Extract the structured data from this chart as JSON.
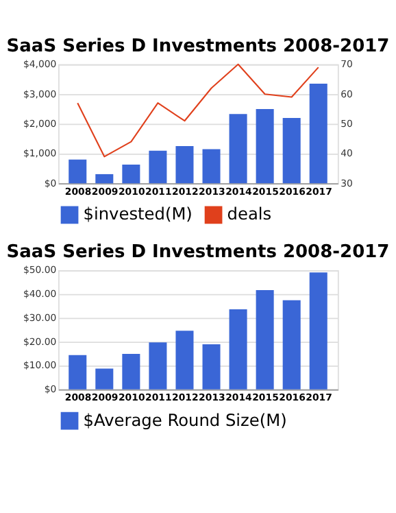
{
  "chart_data": [
    {
      "type": "bar",
      "title": "SaaS Series D Investments 2008-2017",
      "categories": [
        "2008",
        "2009",
        "2010",
        "2011",
        "2012",
        "2013",
        "2014",
        "2015",
        "2016",
        "2017"
      ],
      "series": [
        {
          "name": "$invested(M)",
          "color": "#3a66d6",
          "values": [
            800,
            310,
            630,
            1100,
            1250,
            1150,
            2330,
            2500,
            2200,
            3350
          ]
        },
        {
          "name": "deals",
          "type": "line",
          "axis": "y2",
          "color": "#e0401c",
          "values": [
            57,
            39,
            44,
            57,
            51,
            62,
            70,
            60,
            59,
            69
          ]
        }
      ],
      "ylim": [
        0,
        4000
      ],
      "yticks": [
        {
          "value": 0,
          "label": "$0"
        },
        {
          "value": 1000,
          "label": "$1,000"
        },
        {
          "value": 2000,
          "label": "$2,000"
        },
        {
          "value": 3000,
          "label": "$3,000"
        },
        {
          "value": 4000,
          "label": "$4,000"
        }
      ],
      "y2lim": [
        30,
        70
      ],
      "y2ticks": [
        30,
        40,
        50,
        60,
        70
      ],
      "grid": "y",
      "legend": "bottom",
      "marker": "none"
    },
    {
      "type": "bar",
      "title": "SaaS Series D Investments 2008-2017",
      "categories": [
        "2008",
        "2009",
        "2010",
        "2011",
        "2012",
        "2013",
        "2014",
        "2015",
        "2016",
        "2017"
      ],
      "series": [
        {
          "name": "$Average Round Size(M)",
          "color": "#3a66d6",
          "values": [
            14.4,
            8.7,
            14.9,
            19.7,
            24.6,
            18.9,
            33.6,
            41.7,
            37.4,
            49.1
          ]
        }
      ],
      "ylim": [
        0,
        50
      ],
      "yticks": [
        {
          "value": 0,
          "label": "$0"
        },
        {
          "value": 10,
          "label": "$10.00"
        },
        {
          "value": 20,
          "label": "$20.00"
        },
        {
          "value": 30,
          "label": "$30.00"
        },
        {
          "value": 40,
          "label": "$40.00"
        },
        {
          "value": 50,
          "label": "$50.00"
        }
      ],
      "grid": "y",
      "legend": "bottom"
    }
  ]
}
